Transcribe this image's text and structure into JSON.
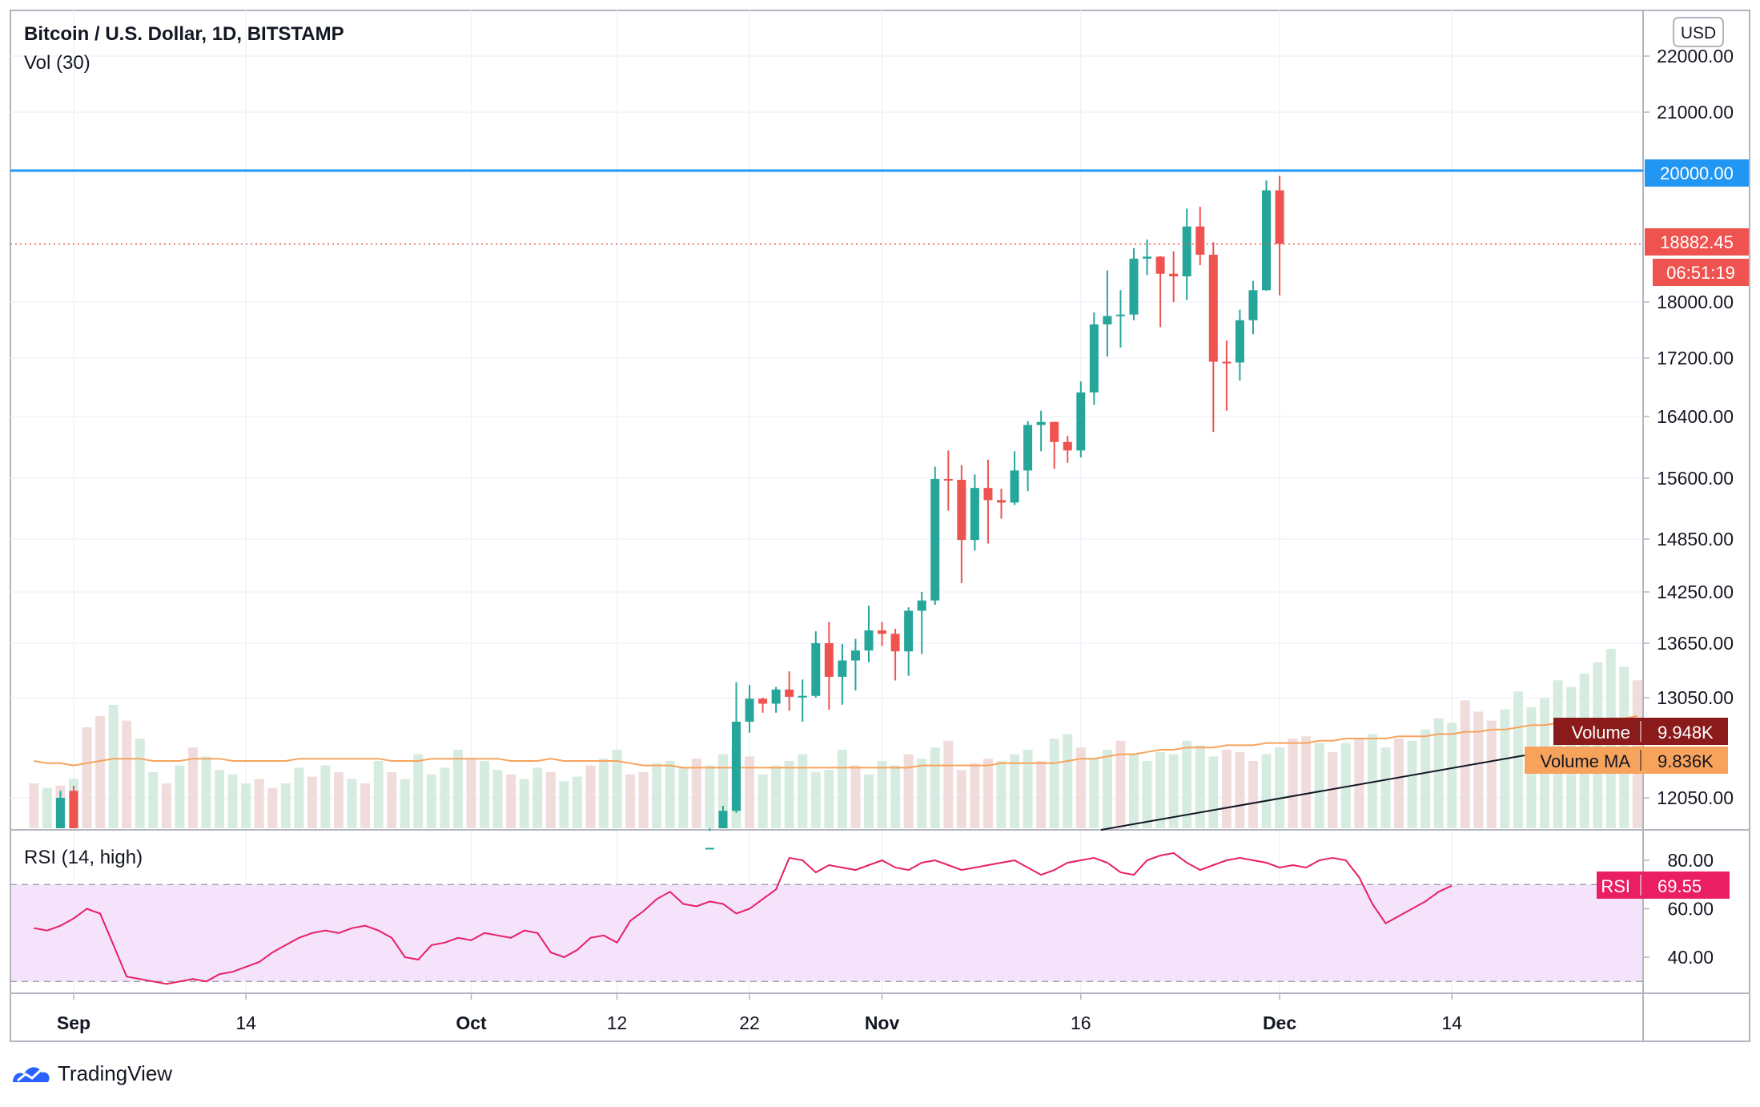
{
  "header": {
    "title": "Bitcoin / U.S. Dollar, 1D, BITSTAMP",
    "volume_label": "Vol (30)"
  },
  "currency_badge": "USD",
  "brand": "TradingView",
  "colors": {
    "up": "#26a69a",
    "down": "#ef5350",
    "vol_up": "#d7ece0",
    "vol_down": "#f1dcdc",
    "level_line": "#2196f3",
    "last_price": "#ef5350",
    "vol_ma": "#f7a35c",
    "rsi": "#e91e63",
    "rsi_band": "#f4e3fb",
    "volume_tag": "#8b1a1a",
    "volume_ma_tag": "#f7a35c"
  },
  "price_axis": {
    "ticks": [
      "22000.00",
      "21000.00",
      "20000.00",
      "18000.00",
      "17200.00",
      "16400.00",
      "15600.00",
      "14850.00",
      "14250.00",
      "13650.00",
      "13050.00",
      "12050.00"
    ]
  },
  "rsi_axis": {
    "ticks": [
      "80.00",
      "60.00",
      "40.00"
    ]
  },
  "time_axis": {
    "ticks": [
      "Sep",
      "14",
      "Oct",
      "12",
      "22",
      "Nov",
      "16",
      "Dec",
      "14"
    ]
  },
  "tags": {
    "level": "20000.00",
    "last_price": "18882.45",
    "countdown": "06:51:19",
    "volume_name": "Volume",
    "volume_value": "9.948K",
    "volume_ma_name": "Volume MA",
    "volume_ma_value": "9.836K",
    "rsi_name": "RSI",
    "rsi_value": "69.55"
  },
  "chart_data": [
    {
      "type": "candlestick",
      "title": "Bitcoin / U.S. Dollar, 1D, BITSTAMP",
      "x_range": [
        "2020-09-01",
        "2020-12-24"
      ],
      "horizontal_line": 20000,
      "last_price": 18882.45,
      "candles": [
        {
          "d": "2020-10-21",
          "o": 11920,
          "h": 13220,
          "l": 11900,
          "c": 12810
        },
        {
          "d": "2020-10-22",
          "o": 12810,
          "h": 13190,
          "l": 12700,
          "c": 13040
        },
        {
          "d": "2020-10-23",
          "o": 13040,
          "h": 13050,
          "l": 12900,
          "c": 12990
        },
        {
          "d": "2020-10-24",
          "o": 12990,
          "h": 13170,
          "l": 12900,
          "c": 13140
        },
        {
          "d": "2020-10-25",
          "o": 13140,
          "h": 13340,
          "l": 12920,
          "c": 13060
        },
        {
          "d": "2020-10-26",
          "o": 13060,
          "h": 13250,
          "l": 12810,
          "c": 13070
        },
        {
          "d": "2020-10-27",
          "o": 13070,
          "h": 13790,
          "l": 13050,
          "c": 13650
        },
        {
          "d": "2020-10-28",
          "o": 13650,
          "h": 13900,
          "l": 12930,
          "c": 13280
        },
        {
          "d": "2020-10-29",
          "o": 13280,
          "h": 13640,
          "l": 12980,
          "c": 13460
        },
        {
          "d": "2020-10-30",
          "o": 13460,
          "h": 13700,
          "l": 13130,
          "c": 13570
        },
        {
          "d": "2020-10-31",
          "o": 13570,
          "h": 14090,
          "l": 13440,
          "c": 13800
        },
        {
          "d": "2020-11-01",
          "o": 13800,
          "h": 13900,
          "l": 13620,
          "c": 13760
        },
        {
          "d": "2020-11-02",
          "o": 13760,
          "h": 13820,
          "l": 13240,
          "c": 13560
        },
        {
          "d": "2020-11-03",
          "o": 13560,
          "h": 14070,
          "l": 13290,
          "c": 14030
        },
        {
          "d": "2020-11-04",
          "o": 14030,
          "h": 14250,
          "l": 13530,
          "c": 14150
        },
        {
          "d": "2020-11-05",
          "o": 14150,
          "h": 15750,
          "l": 14100,
          "c": 15590
        },
        {
          "d": "2020-11-06",
          "o": 15590,
          "h": 15960,
          "l": 15200,
          "c": 15580
        },
        {
          "d": "2020-11-07",
          "o": 15580,
          "h": 15770,
          "l": 14350,
          "c": 14840
        },
        {
          "d": "2020-11-08",
          "o": 14840,
          "h": 15650,
          "l": 14720,
          "c": 15480
        },
        {
          "d": "2020-11-09",
          "o": 15480,
          "h": 15840,
          "l": 14800,
          "c": 15330
        },
        {
          "d": "2020-11-10",
          "o": 15330,
          "h": 15470,
          "l": 15100,
          "c": 15300
        },
        {
          "d": "2020-11-11",
          "o": 15300,
          "h": 15950,
          "l": 15270,
          "c": 15700
        },
        {
          "d": "2020-11-12",
          "o": 15700,
          "h": 16340,
          "l": 15440,
          "c": 16290
        },
        {
          "d": "2020-11-13",
          "o": 16290,
          "h": 16480,
          "l": 15950,
          "c": 16330
        },
        {
          "d": "2020-11-14",
          "o": 16330,
          "h": 16330,
          "l": 15720,
          "c": 16070
        },
        {
          "d": "2020-11-15",
          "o": 16070,
          "h": 16150,
          "l": 15800,
          "c": 15960
        },
        {
          "d": "2020-11-16",
          "o": 15960,
          "h": 16880,
          "l": 15870,
          "c": 16730
        },
        {
          "d": "2020-11-17",
          "o": 16730,
          "h": 17850,
          "l": 16560,
          "c": 17680
        },
        {
          "d": "2020-11-18",
          "o": 17680,
          "h": 18480,
          "l": 17220,
          "c": 17800
        },
        {
          "d": "2020-11-19",
          "o": 17800,
          "h": 18180,
          "l": 17350,
          "c": 17820
        },
        {
          "d": "2020-11-20",
          "o": 17820,
          "h": 18820,
          "l": 17740,
          "c": 18660
        },
        {
          "d": "2020-11-21",
          "o": 18660,
          "h": 18950,
          "l": 18410,
          "c": 18690
        },
        {
          "d": "2020-11-22",
          "o": 18690,
          "h": 18700,
          "l": 17640,
          "c": 18430
        },
        {
          "d": "2020-11-23",
          "o": 18430,
          "h": 18770,
          "l": 18000,
          "c": 18390
        },
        {
          "d": "2020-11-24",
          "o": 18390,
          "h": 19420,
          "l": 18030,
          "c": 19150
        },
        {
          "d": "2020-11-25",
          "o": 19150,
          "h": 19450,
          "l": 18560,
          "c": 18720
        },
        {
          "d": "2020-11-26",
          "o": 18720,
          "h": 18910,
          "l": 16200,
          "c": 17150
        },
        {
          "d": "2020-11-27",
          "o": 17150,
          "h": 17450,
          "l": 16480,
          "c": 17140
        },
        {
          "d": "2020-11-28",
          "o": 17140,
          "h": 17890,
          "l": 16890,
          "c": 17740
        },
        {
          "d": "2020-11-29",
          "o": 17740,
          "h": 18320,
          "l": 17540,
          "c": 18180
        },
        {
          "d": "2020-11-30",
          "o": 18180,
          "h": 19850,
          "l": 18170,
          "c": 19700
        },
        {
          "d": "2020-12-01",
          "o": 19700,
          "h": 19920,
          "l": 18100,
          "c": 18882.45
        }
      ],
      "price_axis_ticks": [
        12050,
        13050,
        13650,
        14250,
        14850,
        15600,
        16400,
        17200,
        18000,
        20000,
        21000,
        22000
      ]
    },
    {
      "type": "bar",
      "title": "Vol (30)",
      "series": [
        {
          "name": "Volume",
          "dir": [
            "d",
            "u",
            "d",
            "u",
            "d",
            "d",
            "u",
            "d",
            "u",
            "u",
            "d",
            "u",
            "d",
            "u",
            "u",
            "u",
            "u",
            "d",
            "d",
            "u",
            "u",
            "d",
            "u",
            "d",
            "u",
            "d",
            "u",
            "d",
            "u",
            "u",
            "u",
            "u",
            "u",
            "d",
            "u",
            "u",
            "d",
            "u",
            "u",
            "d",
            "u",
            "u",
            "d",
            "u",
            "u",
            "d",
            "d",
            "u",
            "u",
            "u",
            "d",
            "u",
            "u",
            "u",
            "d",
            "u",
            "u",
            "u",
            "u",
            "u",
            "u",
            "u",
            "d",
            "u",
            "u",
            "u",
            "d",
            "u",
            "u",
            "d",
            "d",
            "d",
            "d",
            "u",
            "u",
            "u",
            "d",
            "u",
            "u",
            "d",
            "u",
            "u",
            "d",
            "u",
            "u",
            "u",
            "u",
            "u",
            "u",
            "u",
            "d",
            "d",
            "d",
            "u",
            "u",
            "d",
            "d",
            "u",
            "d",
            "u",
            "d",
            "u",
            "u",
            "d",
            "u",
            "u",
            "u",
            "u",
            "d",
            "d",
            "d",
            "u",
            "u",
            "u",
            "u",
            "u",
            "u",
            "u",
            "u",
            "u",
            "u",
            "d"
          ],
          "values": [
            0.2,
            0.18,
            0.19,
            0.22,
            0.45,
            0.5,
            0.55,
            0.48,
            0.4,
            0.25,
            0.2,
            0.28,
            0.36,
            0.32,
            0.26,
            0.24,
            0.2,
            0.22,
            0.18,
            0.2,
            0.27,
            0.23,
            0.28,
            0.25,
            0.22,
            0.2,
            0.3,
            0.25,
            0.22,
            0.33,
            0.24,
            0.27,
            0.35,
            0.31,
            0.3,
            0.26,
            0.24,
            0.22,
            0.27,
            0.25,
            0.21,
            0.23,
            0.28,
            0.31,
            0.35,
            0.24,
            0.25,
            0.29,
            0.3,
            0.27,
            0.31,
            0.28,
            0.33,
            0.36,
            0.32,
            0.24,
            0.28,
            0.3,
            0.33,
            0.25,
            0.26,
            0.35,
            0.28,
            0.24,
            0.3,
            0.28,
            0.33,
            0.31,
            0.36,
            0.39,
            0.26,
            0.29,
            0.31,
            0.3,
            0.33,
            0.35,
            0.3,
            0.4,
            0.42,
            0.36,
            0.31,
            0.35,
            0.39,
            0.33,
            0.3,
            0.34,
            0.33,
            0.39,
            0.37,
            0.32,
            0.35,
            0.34,
            0.3,
            0.33,
            0.36,
            0.4,
            0.41,
            0.38,
            0.34,
            0.38,
            0.4,
            0.42,
            0.36,
            0.4,
            0.39,
            0.44,
            0.49,
            0.47,
            0.57,
            0.52,
            0.48,
            0.53,
            0.61,
            0.54,
            0.58,
            0.66,
            0.63,
            0.69,
            0.74,
            0.8,
            0.72,
            0.66
          ]
        },
        {
          "name": "Volume MA",
          "values": [
            0.3,
            0.29,
            0.29,
            0.28,
            0.29,
            0.3,
            0.31,
            0.31,
            0.31,
            0.3,
            0.3,
            0.3,
            0.31,
            0.31,
            0.31,
            0.3,
            0.3,
            0.3,
            0.3,
            0.3,
            0.31,
            0.31,
            0.31,
            0.31,
            0.31,
            0.31,
            0.31,
            0.3,
            0.3,
            0.3,
            0.31,
            0.31,
            0.31,
            0.31,
            0.31,
            0.31,
            0.3,
            0.3,
            0.3,
            0.31,
            0.3,
            0.3,
            0.3,
            0.3,
            0.3,
            0.29,
            0.28,
            0.28,
            0.28,
            0.27,
            0.27,
            0.27,
            0.27,
            0.27,
            0.27,
            0.27,
            0.27,
            0.27,
            0.27,
            0.27,
            0.27,
            0.27,
            0.27,
            0.27,
            0.27,
            0.27,
            0.27,
            0.28,
            0.28,
            0.28,
            0.28,
            0.28,
            0.28,
            0.29,
            0.29,
            0.29,
            0.29,
            0.29,
            0.3,
            0.31,
            0.31,
            0.32,
            0.33,
            0.33,
            0.34,
            0.35,
            0.35,
            0.36,
            0.36,
            0.36,
            0.37,
            0.37,
            0.37,
            0.38,
            0.38,
            0.38,
            0.38,
            0.39,
            0.39,
            0.4,
            0.4,
            0.4,
            0.4,
            0.41,
            0.41,
            0.41,
            0.42,
            0.42,
            0.43,
            0.43,
            0.44,
            0.44,
            0.45,
            0.46,
            0.46,
            0.47,
            0.47,
            0.48,
            0.48,
            0.49,
            0.49,
            0.5
          ]
        }
      ],
      "last_values": {
        "Volume": "9.948K",
        "Volume MA": "9.836K"
      }
    },
    {
      "type": "line",
      "title": "RSI (14, high)",
      "ylim": [
        25,
        90
      ],
      "bands": [
        30,
        70
      ],
      "values": [
        52,
        51,
        53,
        56,
        60,
        58,
        45,
        32,
        31,
        30,
        29,
        30,
        31,
        30,
        33,
        34,
        36,
        38,
        42,
        45,
        48,
        50,
        51,
        50,
        52,
        53,
        51,
        48,
        40,
        39,
        45,
        46,
        48,
        47,
        50,
        49,
        48,
        51,
        50,
        42,
        40,
        43,
        48,
        49,
        46,
        55,
        59,
        64,
        67,
        62,
        61,
        63,
        62,
        58,
        60,
        64,
        68,
        81,
        80,
        75,
        78,
        77,
        76,
        78,
        80,
        77,
        76,
        79,
        80,
        78,
        76,
        77,
        78,
        79,
        80,
        77,
        74,
        76,
        79,
        80,
        81,
        79,
        75,
        74,
        80,
        82,
        83,
        79,
        76,
        78,
        80,
        81,
        80,
        79,
        77,
        78,
        77,
        80,
        81,
        80,
        73,
        62,
        54,
        57,
        60,
        63,
        67,
        69.55
      ]
    }
  ]
}
